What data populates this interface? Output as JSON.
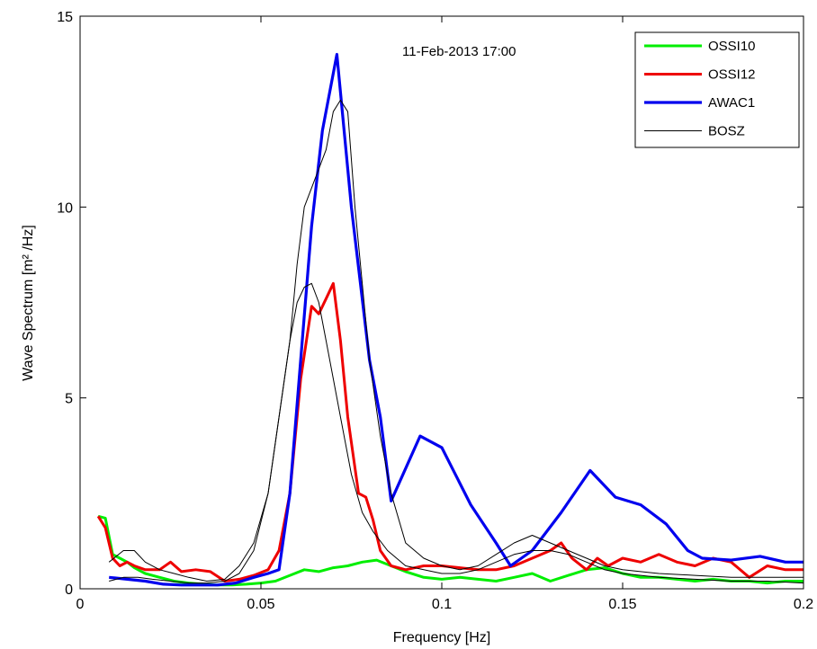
{
  "chart_data": {
    "type": "line",
    "annotation": "11-Feb-2013 17:00",
    "xlabel": "Frequency [Hz]",
    "ylabel": "Wave Spectrum [m² /Hz]",
    "xlim": [
      0,
      0.2
    ],
    "ylim": [
      0,
      15
    ],
    "xticks": [
      0,
      0.05,
      0.1,
      0.15,
      0.2
    ],
    "xtick_labels": [
      "0",
      "0.05",
      "0.1",
      "0.15",
      "0.2"
    ],
    "yticks": [
      0,
      5,
      10,
      15
    ],
    "ytick_labels": [
      "0",
      "5",
      "10",
      "15"
    ],
    "legend_position": "top-right",
    "series": [
      {
        "name": "OSSI10",
        "color": "#00ee00",
        "x": [
          0.005,
          0.007,
          0.009,
          0.011,
          0.013,
          0.015,
          0.018,
          0.022,
          0.026,
          0.03,
          0.034,
          0.038,
          0.042,
          0.046,
          0.05,
          0.054,
          0.058,
          0.062,
          0.066,
          0.07,
          0.074,
          0.078,
          0.082,
          0.086,
          0.09,
          0.095,
          0.1,
          0.105,
          0.11,
          0.115,
          0.12,
          0.125,
          0.13,
          0.135,
          0.14,
          0.145,
          0.15,
          0.155,
          0.16,
          0.165,
          0.17,
          0.175,
          0.18,
          0.185,
          0.19,
          0.195,
          0.2
        ],
        "values": [
          1.9,
          1.85,
          0.9,
          0.8,
          0.7,
          0.55,
          0.4,
          0.3,
          0.2,
          0.15,
          0.12,
          0.1,
          0.1,
          0.12,
          0.15,
          0.2,
          0.35,
          0.5,
          0.45,
          0.55,
          0.6,
          0.7,
          0.75,
          0.6,
          0.45,
          0.3,
          0.25,
          0.3,
          0.25,
          0.2,
          0.3,
          0.4,
          0.2,
          0.35,
          0.5,
          0.55,
          0.4,
          0.3,
          0.3,
          0.25,
          0.2,
          0.25,
          0.2,
          0.2,
          0.15,
          0.2,
          0.2
        ]
      },
      {
        "name": "OSSI12",
        "color": "#ee0000",
        "x": [
          0.005,
          0.007,
          0.009,
          0.011,
          0.013,
          0.015,
          0.018,
          0.022,
          0.025,
          0.028,
          0.032,
          0.036,
          0.04,
          0.044,
          0.048,
          0.052,
          0.055,
          0.058,
          0.061,
          0.064,
          0.066,
          0.068,
          0.07,
          0.072,
          0.074,
          0.077,
          0.079,
          0.081,
          0.083,
          0.086,
          0.09,
          0.095,
          0.1,
          0.105,
          0.11,
          0.115,
          0.12,
          0.125,
          0.13,
          0.133,
          0.136,
          0.14,
          0.143,
          0.146,
          0.15,
          0.155,
          0.16,
          0.165,
          0.17,
          0.175,
          0.18,
          0.185,
          0.19,
          0.195,
          0.2
        ],
        "values": [
          1.9,
          1.6,
          0.8,
          0.6,
          0.7,
          0.6,
          0.5,
          0.5,
          0.7,
          0.45,
          0.5,
          0.45,
          0.2,
          0.25,
          0.35,
          0.5,
          1.0,
          2.5,
          5.5,
          7.4,
          7.2,
          7.6,
          8.0,
          6.5,
          4.5,
          2.5,
          2.4,
          1.8,
          1.0,
          0.6,
          0.5,
          0.6,
          0.6,
          0.55,
          0.5,
          0.5,
          0.6,
          0.8,
          1.0,
          1.2,
          0.8,
          0.5,
          0.8,
          0.6,
          0.8,
          0.7,
          0.9,
          0.7,
          0.6,
          0.8,
          0.7,
          0.3,
          0.6,
          0.5,
          0.5
        ]
      },
      {
        "name": "AWAC1",
        "color": "#0000ee",
        "x": [
          0.008,
          0.013,
          0.018,
          0.023,
          0.028,
          0.033,
          0.038,
          0.043,
          0.048,
          0.052,
          0.055,
          0.058,
          0.061,
          0.064,
          0.067,
          0.071,
          0.075,
          0.08,
          0.083,
          0.086,
          0.094,
          0.1,
          0.108,
          0.115,
          0.119,
          0.125,
          0.133,
          0.141,
          0.148,
          0.155,
          0.162,
          0.168,
          0.172,
          0.18,
          0.188,
          0.195,
          0.2
        ],
        "values": [
          0.3,
          0.25,
          0.2,
          0.12,
          0.1,
          0.1,
          0.1,
          0.15,
          0.3,
          0.4,
          0.5,
          2.5,
          6.0,
          9.5,
          12.0,
          14.0,
          10.0,
          6.0,
          4.5,
          2.3,
          4.0,
          3.7,
          2.2,
          1.2,
          0.6,
          1.0,
          2.0,
          3.1,
          2.4,
          2.2,
          1.7,
          1.0,
          0.8,
          0.75,
          0.85,
          0.7,
          0.7
        ]
      },
      {
        "name": "BOSZ",
        "color": "#000000",
        "x": [
          0.008,
          0.012,
          0.015,
          0.018,
          0.022,
          0.026,
          0.03,
          0.035,
          0.04,
          0.044,
          0.048,
          0.052,
          0.055,
          0.058,
          0.06,
          0.062,
          0.064,
          0.066,
          0.068,
          0.07,
          0.072,
          0.074,
          0.076,
          0.078,
          0.08,
          0.083,
          0.086,
          0.09,
          0.095,
          0.1,
          0.105,
          0.11,
          0.115,
          0.12,
          0.125,
          0.13,
          0.135,
          0.14,
          0.145,
          0.15,
          0.16,
          0.17,
          0.18,
          0.19,
          0.2
        ],
        "values": [
          0.7,
          1.0,
          1.0,
          0.7,
          0.5,
          0.4,
          0.3,
          0.2,
          0.25,
          0.6,
          1.2,
          2.5,
          4.5,
          6.5,
          8.5,
          10.0,
          10.5,
          11.0,
          11.5,
          12.5,
          12.8,
          12.5,
          10.0,
          8.0,
          6.0,
          4.0,
          2.5,
          1.2,
          0.8,
          0.6,
          0.5,
          0.6,
          0.9,
          1.2,
          1.4,
          1.2,
          1.0,
          0.8,
          0.6,
          0.5,
          0.4,
          0.35,
          0.3,
          0.3,
          0.3
        ]
      },
      {
        "name": "",
        "color": "#000000",
        "x": [
          0.008,
          0.012,
          0.016,
          0.02,
          0.025,
          0.03,
          0.035,
          0.04,
          0.044,
          0.048,
          0.052,
          0.055,
          0.058,
          0.06,
          0.062,
          0.064,
          0.066,
          0.068,
          0.07,
          0.072,
          0.075,
          0.078,
          0.081,
          0.085,
          0.09,
          0.095,
          0.1,
          0.105,
          0.11,
          0.115,
          0.12,
          0.125,
          0.13,
          0.135,
          0.14,
          0.145,
          0.15,
          0.16,
          0.17,
          0.18,
          0.19,
          0.2
        ],
        "values": [
          0.2,
          0.3,
          0.3,
          0.25,
          0.2,
          0.15,
          0.15,
          0.2,
          0.4,
          1.0,
          2.5,
          4.5,
          6.5,
          7.5,
          7.9,
          8.0,
          7.5,
          6.5,
          5.5,
          4.5,
          3.0,
          2.0,
          1.5,
          1.0,
          0.6,
          0.5,
          0.4,
          0.4,
          0.5,
          0.7,
          0.9,
          1.0,
          1.0,
          0.9,
          0.7,
          0.5,
          0.4,
          0.3,
          0.25,
          0.2,
          0.2,
          0.15
        ]
      }
    ]
  }
}
